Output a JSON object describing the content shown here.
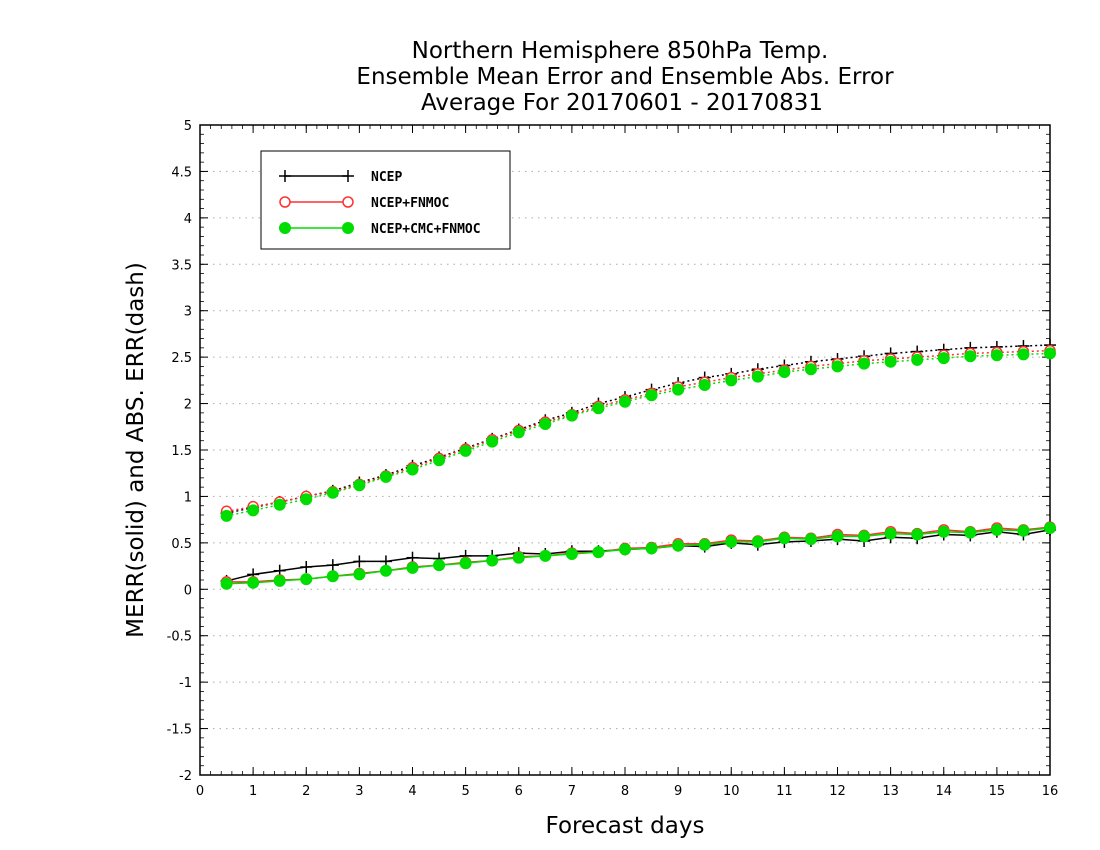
{
  "chart_data": {
    "type": "line",
    "title": [
      "Northern Hemisphere 850hPa Temp.",
      "Ensemble Mean Error and Ensemble Abs. Error",
      "Average For 20170601 - 20170831"
    ],
    "xlabel": "Forecast days",
    "ylabel": "MERR(solid) and ABS. ERR(dash)",
    "xlim": [
      0,
      16
    ],
    "ylim": [
      -2,
      5
    ],
    "xticks": [
      "0",
      "1",
      "2",
      "3",
      "4",
      "5",
      "6",
      "7",
      "8",
      "9",
      "10",
      "11",
      "12",
      "13",
      "14",
      "15",
      "16"
    ],
    "yticks": [
      "-2",
      "-1.5",
      "-1",
      "-0.5",
      "0",
      "0.5",
      "1",
      "1.5",
      "2",
      "2.5",
      "3",
      "3.5",
      "4",
      "4.5",
      "5"
    ],
    "grid": "horizontal-dotted",
    "legend_position": "top-left",
    "x": [
      0.5,
      1,
      1.5,
      2,
      2.5,
      3,
      3.5,
      4,
      4.5,
      5,
      5.5,
      6,
      6.5,
      7,
      7.5,
      8,
      8.5,
      9,
      9.5,
      10,
      10.5,
      11,
      11.5,
      12,
      12.5,
      13,
      13.5,
      14,
      14.5,
      15,
      15.5,
      16
    ],
    "series": [
      {
        "name": "NCEP",
        "color": "#000000",
        "marker": "plus",
        "merr": [
          0.09,
          0.16,
          0.2,
          0.24,
          0.26,
          0.3,
          0.3,
          0.34,
          0.33,
          0.36,
          0.36,
          0.39,
          0.38,
          0.41,
          0.41,
          0.43,
          0.44,
          0.47,
          0.46,
          0.5,
          0.48,
          0.51,
          0.52,
          0.54,
          0.52,
          0.56,
          0.55,
          0.59,
          0.58,
          0.62,
          0.59,
          0.64
        ],
        "abs_err": [
          0.82,
          0.88,
          0.94,
          1.0,
          1.06,
          1.15,
          1.23,
          1.33,
          1.42,
          1.52,
          1.62,
          1.72,
          1.82,
          1.9,
          2.0,
          2.07,
          2.15,
          2.22,
          2.28,
          2.32,
          2.37,
          2.41,
          2.45,
          2.48,
          2.51,
          2.54,
          2.56,
          2.58,
          2.6,
          2.61,
          2.62,
          2.63
        ]
      },
      {
        "name": "NCEP+FNMOC",
        "color": "#ff3030",
        "marker": "circle-open",
        "merr": [
          0.08,
          0.08,
          0.1,
          0.11,
          0.14,
          0.17,
          0.2,
          0.24,
          0.26,
          0.29,
          0.31,
          0.35,
          0.36,
          0.39,
          0.4,
          0.44,
          0.45,
          0.49,
          0.49,
          0.53,
          0.52,
          0.56,
          0.55,
          0.59,
          0.58,
          0.62,
          0.6,
          0.64,
          0.62,
          0.66,
          0.64,
          0.67
        ],
        "abs_err": [
          0.84,
          0.89,
          0.94,
          1.0,
          1.05,
          1.13,
          1.22,
          1.31,
          1.41,
          1.51,
          1.61,
          1.71,
          1.8,
          1.88,
          1.97,
          2.04,
          2.11,
          2.18,
          2.23,
          2.28,
          2.32,
          2.36,
          2.4,
          2.43,
          2.46,
          2.48,
          2.5,
          2.52,
          2.54,
          2.55,
          2.56,
          2.57
        ]
      },
      {
        "name": "NCEP+CMC+FNMOC",
        "color": "#00dd00",
        "marker": "circle-filled",
        "merr": [
          0.06,
          0.07,
          0.09,
          0.11,
          0.14,
          0.16,
          0.2,
          0.23,
          0.26,
          0.28,
          0.31,
          0.34,
          0.36,
          0.38,
          0.4,
          0.43,
          0.44,
          0.47,
          0.48,
          0.51,
          0.51,
          0.55,
          0.54,
          0.57,
          0.57,
          0.6,
          0.59,
          0.62,
          0.61,
          0.64,
          0.63,
          0.66
        ],
        "abs_err": [
          0.79,
          0.85,
          0.91,
          0.97,
          1.04,
          1.12,
          1.21,
          1.29,
          1.39,
          1.49,
          1.59,
          1.69,
          1.78,
          1.87,
          1.95,
          2.02,
          2.09,
          2.15,
          2.2,
          2.25,
          2.29,
          2.34,
          2.37,
          2.4,
          2.43,
          2.45,
          2.47,
          2.49,
          2.51,
          2.52,
          2.53,
          2.54
        ]
      }
    ]
  }
}
